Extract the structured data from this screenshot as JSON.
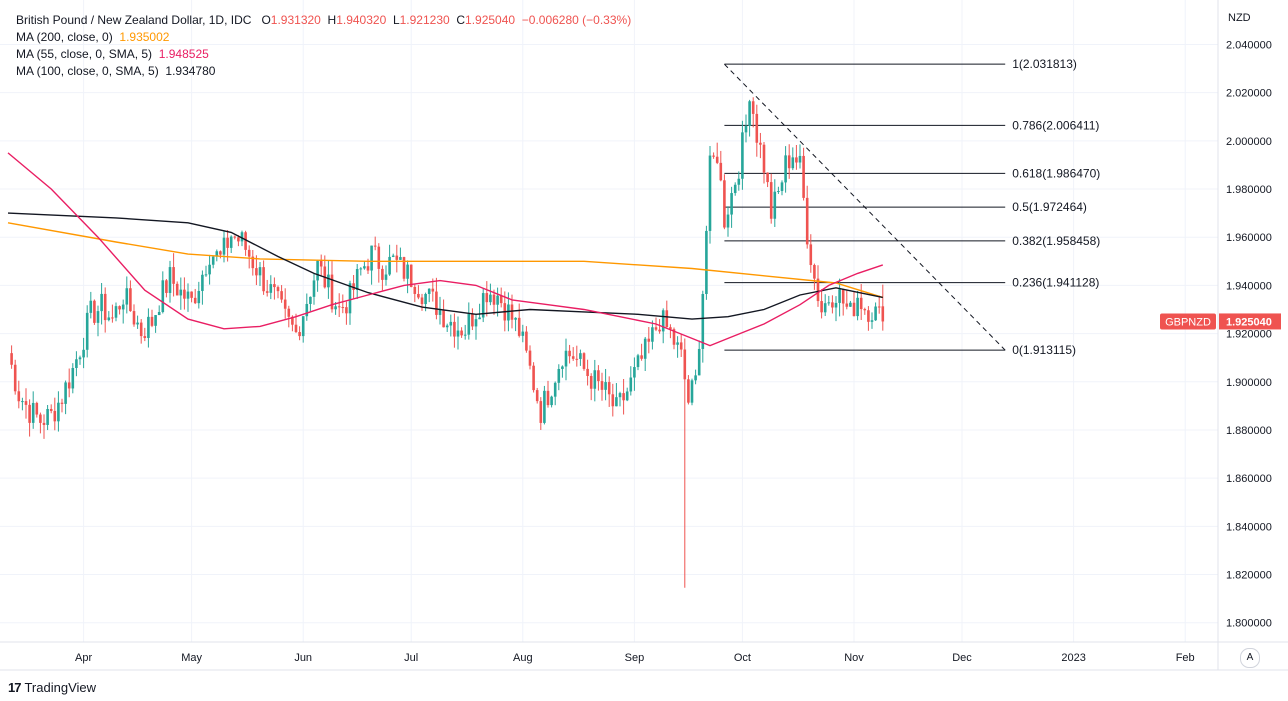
{
  "legend": {
    "title": "British Pound / New Zealand Dollar, 1D, IDC",
    "o_label": "O",
    "o": "1.931320",
    "h_label": "H",
    "h": "1.940320",
    "l_label": "L",
    "l": "1.921230",
    "c_label": "C",
    "c": "1.925040",
    "change": "−0.006280 (−0.33%)",
    "ma200_label": "MA (200, close, 0)",
    "ma200_value": "1.935002",
    "ma55_label": "MA (55, close, 0, SMA, 5)",
    "ma55_value": "1.948525",
    "ma100_label": "MA (100, close, 0, SMA, 5)",
    "ma100_value": "1.934780"
  },
  "axis": {
    "currency": "NZD"
  },
  "price_tag": {
    "symbol": "GBPNZD",
    "price": "1.925040"
  },
  "footer": {
    "brand": "TradingView",
    "logo_text": "17"
  },
  "controls": {
    "auto_label": "A"
  },
  "colors": {
    "up": "#26a69a",
    "down": "#ef5350",
    "ma200": "#ff9800",
    "ma55": "#e91e63",
    "ma100": "#131722",
    "grid": "#f0f3fa"
  },
  "chart_data": {
    "type": "candlestick",
    "title": "British Pound / New Zealand Dollar, 1D, IDC",
    "ylabel": "NZD",
    "ylim": [
      1.792,
      2.046
    ],
    "y_ticks": [
      "2.040000",
      "2.020000",
      "2.000000",
      "1.980000",
      "1.960000",
      "1.940000",
      "1.920000",
      "1.900000",
      "1.880000",
      "1.860000",
      "1.840000",
      "1.820000",
      "1.800000"
    ],
    "x_ticks": [
      {
        "label": "Apr",
        "day": 21
      },
      {
        "label": "May",
        "day": 51
      },
      {
        "label": "Jun",
        "day": 82
      },
      {
        "label": "Jul",
        "day": 112
      },
      {
        "label": "Aug",
        "day": 143
      },
      {
        "label": "Sep",
        "day": 174
      },
      {
        "label": "Oct",
        "day": 204
      },
      {
        "label": "Nov",
        "day": 235
      },
      {
        "label": "Dec",
        "day": 265
      },
      {
        "label": "2023",
        "day": 296
      },
      {
        "label": "Feb",
        "day": 327
      }
    ],
    "anchors": [
      [
        0,
        1.912
      ],
      [
        3,
        1.895
      ],
      [
        6,
        1.888
      ],
      [
        9,
        1.884
      ],
      [
        12,
        1.886
      ],
      [
        15,
        1.894
      ],
      [
        18,
        1.905
      ],
      [
        20,
        1.914
      ],
      [
        23,
        1.928
      ],
      [
        26,
        1.931
      ],
      [
        29,
        1.926
      ],
      [
        32,
        1.936
      ],
      [
        34,
        1.93
      ],
      [
        37,
        1.921
      ],
      [
        40,
        1.925
      ],
      [
        42,
        1.934
      ],
      [
        45,
        1.943
      ],
      [
        48,
        1.937
      ],
      [
        51,
        1.933
      ],
      [
        54,
        1.945
      ],
      [
        56,
        1.954
      ],
      [
        59,
        1.951
      ],
      [
        62,
        1.961
      ],
      [
        65,
        1.958
      ],
      [
        68,
        1.95
      ],
      [
        71,
        1.942
      ],
      [
        74,
        1.935
      ],
      [
        77,
        1.926
      ],
      [
        80,
        1.92
      ],
      [
        83,
        1.934
      ],
      [
        86,
        1.948
      ],
      [
        89,
        1.939
      ],
      [
        92,
        1.93
      ],
      [
        95,
        1.935
      ],
      [
        98,
        1.946
      ],
      [
        101,
        1.953
      ],
      [
        104,
        1.948
      ],
      [
        107,
        1.95
      ],
      [
        110,
        1.946
      ],
      [
        113,
        1.942
      ],
      [
        116,
        1.936
      ],
      [
        119,
        1.932
      ],
      [
        122,
        1.926
      ],
      [
        125,
        1.923
      ],
      [
        127,
        1.922
      ],
      [
        130,
        1.93
      ],
      [
        133,
        1.938
      ],
      [
        136,
        1.936
      ],
      [
        139,
        1.929
      ],
      [
        142,
        1.921
      ],
      [
        145,
        1.905
      ],
      [
        148,
        1.888
      ],
      [
        151,
        1.899
      ],
      [
        154,
        1.912
      ],
      [
        157,
        1.911
      ],
      [
        160,
        1.905
      ],
      [
        163,
        1.9
      ],
      [
        166,
        1.895
      ],
      [
        169,
        1.888
      ],
      [
        172,
        1.896
      ],
      [
        175,
        1.906
      ],
      [
        178,
        1.915
      ],
      [
        181,
        1.926
      ],
      [
        184,
        1.92
      ],
      [
        187,
        1.91
      ],
      [
        189,
        1.892
      ],
      [
        191,
        1.9
      ],
      [
        193,
        1.938
      ],
      [
        195,
        1.988
      ],
      [
        197,
        1.995
      ],
      [
        199,
        1.968
      ],
      [
        201,
        1.978
      ],
      [
        203,
        1.99
      ],
      [
        205,
        2.006
      ],
      [
        206,
        2.022
      ],
      [
        208,
        2.003
      ],
      [
        210,
        1.99
      ],
      [
        212,
        1.97
      ],
      [
        214,
        1.978
      ],
      [
        216,
        1.99
      ],
      [
        218,
        1.995
      ],
      [
        220,
        1.989
      ],
      [
        222,
        1.962
      ],
      [
        224,
        1.943
      ],
      [
        226,
        1.93
      ],
      [
        228,
        1.935
      ],
      [
        230,
        1.938
      ],
      [
        232,
        1.933
      ],
      [
        234,
        1.928
      ],
      [
        236,
        1.936
      ],
      [
        238,
        1.931
      ],
      [
        240,
        1.93
      ],
      [
        242,
        1.927
      ],
      [
        243,
        1.925
      ]
    ],
    "spike": {
      "day": 188,
      "low": 1.8145
    },
    "selected_candle": {
      "open": 1.93132,
      "high": 1.94032,
      "low": 1.92123,
      "close": 1.92504
    },
    "ma200": {
      "name": "MA (200, close, 0)",
      "points": [
        [
          0,
          1.966
        ],
        [
          30,
          1.958
        ],
        [
          50,
          1.953
        ],
        [
          70,
          1.951
        ],
        [
          100,
          1.95
        ],
        [
          130,
          1.95
        ],
        [
          160,
          1.95
        ],
        [
          190,
          1.947
        ],
        [
          210,
          1.944
        ],
        [
          230,
          1.941
        ],
        [
          243,
          1.935
        ]
      ]
    },
    "ma100": {
      "name": "MA (100, close, 0, SMA, 5)",
      "points": [
        [
          0,
          1.97
        ],
        [
          30,
          1.968
        ],
        [
          50,
          1.966
        ],
        [
          62,
          1.962
        ],
        [
          75,
          1.952
        ],
        [
          85,
          1.945
        ],
        [
          100,
          1.937
        ],
        [
          115,
          1.931
        ],
        [
          130,
          1.928
        ],
        [
          145,
          1.93
        ],
        [
          160,
          1.929
        ],
        [
          175,
          1.928
        ],
        [
          190,
          1.926
        ],
        [
          200,
          1.927
        ],
        [
          210,
          1.93
        ],
        [
          220,
          1.936
        ],
        [
          230,
          1.939
        ],
        [
          243,
          1.935
        ]
      ]
    },
    "ma55": {
      "name": "MA (55, close, 0, SMA, 5)",
      "points": [
        [
          0,
          1.995
        ],
        [
          12,
          1.98
        ],
        [
          25,
          1.96
        ],
        [
          38,
          1.938
        ],
        [
          50,
          1.926
        ],
        [
          60,
          1.922
        ],
        [
          70,
          1.923
        ],
        [
          80,
          1.927
        ],
        [
          90,
          1.932
        ],
        [
          100,
          1.936
        ],
        [
          110,
          1.94
        ],
        [
          120,
          1.942
        ],
        [
          130,
          1.94
        ],
        [
          140,
          1.934
        ],
        [
          150,
          1.932
        ],
        [
          160,
          1.93
        ],
        [
          170,
          1.927
        ],
        [
          180,
          1.924
        ],
        [
          190,
          1.918
        ],
        [
          195,
          1.915
        ],
        [
          200,
          1.918
        ],
        [
          210,
          1.924
        ],
        [
          220,
          1.932
        ],
        [
          228,
          1.94
        ],
        [
          236,
          1.945
        ],
        [
          243,
          1.9485
        ]
      ]
    },
    "fibonacci": {
      "start_day": 199,
      "end_day": 277,
      "levels": [
        {
          "label": "1(2.031813)",
          "price": 2.031813
        },
        {
          "label": "0.786(2.006411)",
          "price": 2.006411
        },
        {
          "label": "0.618(1.986470)",
          "price": 1.98647
        },
        {
          "label": "0.5(1.972464)",
          "price": 1.972464
        },
        {
          "label": "0.382(1.958458)",
          "price": 1.958458
        },
        {
          "label": "0.236(1.941128)",
          "price": 1.941128
        },
        {
          "label": "0(1.913115)",
          "price": 1.913115
        }
      ],
      "trend_line": {
        "from": [
          199,
          2.031813
        ],
        "to": [
          277,
          1.913115
        ]
      }
    }
  }
}
